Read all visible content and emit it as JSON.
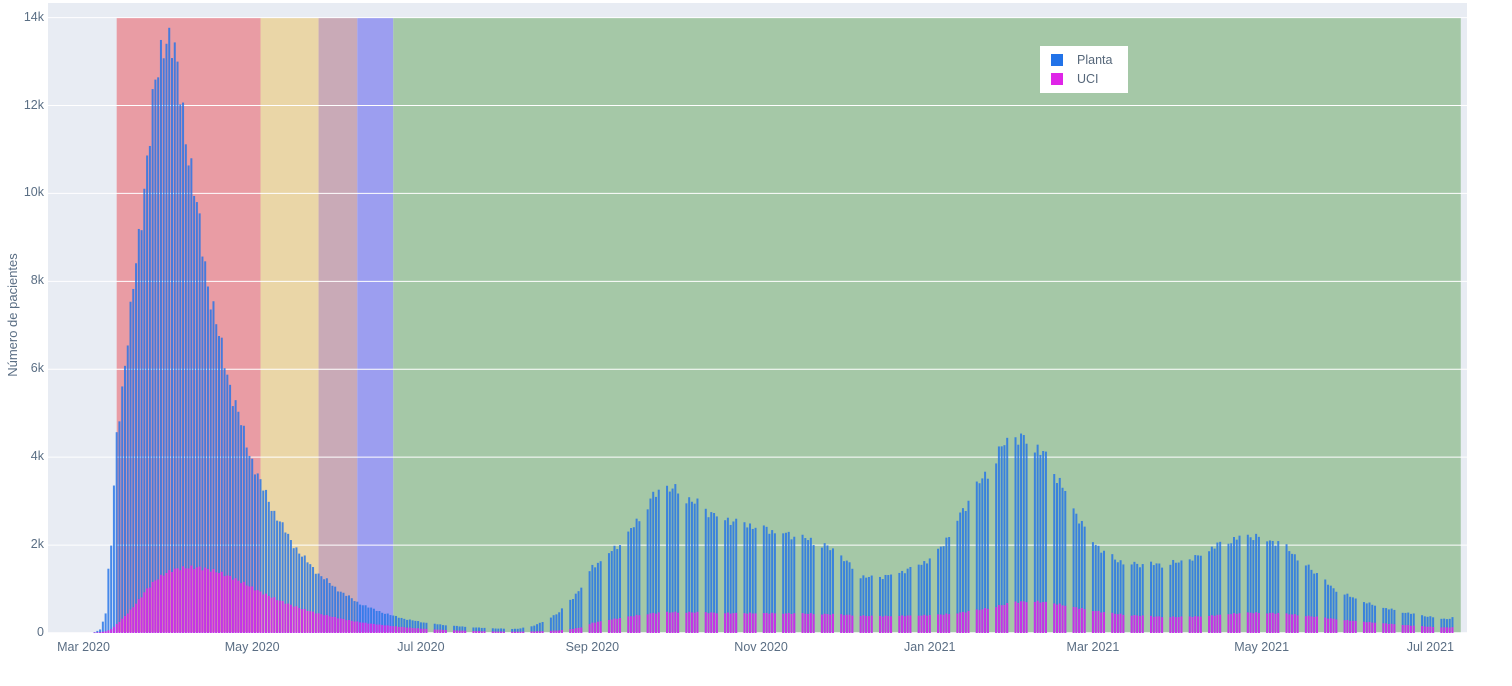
{
  "figure": {
    "background": "#ffffff",
    "plot_background": "#e8ecf3",
    "gridline_color": "#ffffff",
    "tick_text_color": "#5a6e84"
  },
  "legend": {
    "position": "top-right",
    "background": "#ffffff"
  },
  "chart_data": {
    "type": "bar",
    "barmode": "overlay",
    "title": "",
    "xlabel": "",
    "ylabel": "Número de pacientes",
    "ylim": [
      0,
      14000
    ],
    "grid": true,
    "y_ticks": [
      {
        "label": "0",
        "value": 0
      },
      {
        "label": "2k",
        "value": 2000
      },
      {
        "label": "4k",
        "value": 4000
      },
      {
        "label": "6k",
        "value": 6000
      },
      {
        "label": "8k",
        "value": 8000
      },
      {
        "label": "10k",
        "value": 10000
      },
      {
        "label": "12k",
        "value": 12000
      },
      {
        "label": "14k",
        "value": 14000
      }
    ],
    "x_ticks": [
      {
        "label": "Mar 2020",
        "day": 0
      },
      {
        "label": "May 2020",
        "day": 61
      },
      {
        "label": "Jul 2020",
        "day": 122
      },
      {
        "label": "Sep 2020",
        "day": 184
      },
      {
        "label": "Nov 2020",
        "day": 245
      },
      {
        "label": "Jan 2021",
        "day": 306
      },
      {
        "label": "Mar 2021",
        "day": 365
      },
      {
        "label": "May 2021",
        "day": 426
      },
      {
        "label": "Jul 2021",
        "day": 487
      }
    ],
    "day_zero_date": "2020-03-01",
    "data_start": {
      "day": 4,
      "date": "2020-03-05"
    },
    "data_end": {
      "day": 495,
      "date": "2021-07-09"
    },
    "bars_are_daily": true,
    "weekend_gaps_from": {
      "day": 122,
      "date": "2020-07-01"
    },
    "background_phases": [
      {
        "color": "#e99ca4",
        "start_day": 12,
        "end_day": 64,
        "start_date": "2020-03-13",
        "end_date": "2020-05-04"
      },
      {
        "color": "#ead6a7",
        "start_day": 64,
        "end_day": 85,
        "start_date": "2020-05-04",
        "end_date": "2020-05-25"
      },
      {
        "color": "#c9aab7",
        "start_day": 85,
        "end_day": 99,
        "start_date": "2020-05-25",
        "end_date": "2020-06-08"
      },
      {
        "color": "#9c9ef0",
        "start_day": 99,
        "end_day": 112,
        "start_date": "2020-06-08",
        "end_date": "2020-06-21"
      },
      {
        "color": "#a5c8a7",
        "start_day": 112,
        "end_day": 498,
        "start_date": "2020-06-21",
        "end_date": "2021-07-12"
      }
    ],
    "series": [
      {
        "name": "Planta",
        "color": "#2273e8",
        "bar_opacity": 0.82,
        "peak": {
          "value": 13700,
          "date": "2020-03-31"
        }
      },
      {
        "name": "UCI",
        "color": "#df25e8",
        "bar_opacity": 0.85,
        "peak": {
          "value": 1490,
          "date": "2020-04-08"
        }
      }
    ],
    "anchors_format": "[day, planta_value, uci_value] — daily bars linearly interpolated between anchors",
    "anchors": [
      [
        4,
        20,
        10
      ],
      [
        6,
        80,
        20
      ],
      [
        8,
        450,
        40
      ],
      [
        9,
        1400,
        60
      ],
      [
        10,
        2000,
        90
      ],
      [
        11,
        3300,
        140
      ],
      [
        12,
        4500,
        200
      ],
      [
        14,
        5600,
        320
      ],
      [
        17,
        7200,
        520
      ],
      [
        20,
        9000,
        750
      ],
      [
        23,
        10800,
        1000
      ],
      [
        26,
        12400,
        1200
      ],
      [
        29,
        13600,
        1330
      ],
      [
        30,
        13700,
        1370
      ],
      [
        32,
        13350,
        1430
      ],
      [
        35,
        12300,
        1470
      ],
      [
        38,
        11000,
        1490
      ],
      [
        41,
        9600,
        1490
      ],
      [
        45,
        8000,
        1450
      ],
      [
        49,
        6700,
        1380
      ],
      [
        54,
        5400,
        1250
      ],
      [
        59,
        4300,
        1100
      ],
      [
        64,
        3400,
        930
      ],
      [
        69,
        2750,
        790
      ],
      [
        74,
        2200,
        660
      ],
      [
        79,
        1750,
        550
      ],
      [
        85,
        1350,
        440
      ],
      [
        90,
        1080,
        370
      ],
      [
        95,
        860,
        300
      ],
      [
        99,
        700,
        255
      ],
      [
        104,
        560,
        210
      ],
      [
        109,
        450,
        175
      ],
      [
        112,
        390,
        155
      ],
      [
        117,
        310,
        125
      ],
      [
        122,
        250,
        100
      ],
      [
        129,
        190,
        75
      ],
      [
        136,
        150,
        55
      ],
      [
        143,
        120,
        42
      ],
      [
        150,
        100,
        33
      ],
      [
        157,
        95,
        30
      ],
      [
        162,
        150,
        35
      ],
      [
        167,
        280,
        45
      ],
      [
        172,
        480,
        60
      ],
      [
        177,
        800,
        95
      ],
      [
        181,
        1150,
        140
      ],
      [
        184,
        1500,
        230
      ],
      [
        190,
        1800,
        300
      ],
      [
        196,
        2150,
        360
      ],
      [
        202,
        2700,
        420
      ],
      [
        206,
        3100,
        450
      ],
      [
        211,
        3300,
        470
      ],
      [
        216,
        3200,
        475
      ],
      [
        221,
        2950,
        470
      ],
      [
        228,
        2700,
        460
      ],
      [
        235,
        2550,
        450
      ],
      [
        242,
        2450,
        450
      ],
      [
        249,
        2330,
        450
      ],
      [
        256,
        2220,
        445
      ],
      [
        263,
        2100,
        440
      ],
      [
        268,
        1980,
        430
      ],
      [
        273,
        1800,
        420
      ],
      [
        277,
        1550,
        410
      ],
      [
        281,
        1300,
        395
      ],
      [
        285,
        1250,
        385
      ],
      [
        290,
        1300,
        385
      ],
      [
        295,
        1380,
        390
      ],
      [
        300,
        1500,
        395
      ],
      [
        305,
        1650,
        405
      ],
      [
        309,
        1850,
        415
      ],
      [
        314,
        2350,
        440
      ],
      [
        319,
        2900,
        480
      ],
      [
        324,
        3400,
        530
      ],
      [
        329,
        3850,
        590
      ],
      [
        333,
        4300,
        650
      ],
      [
        337,
        4400,
        700
      ],
      [
        341,
        4380,
        720
      ],
      [
        345,
        4200,
        715
      ],
      [
        349,
        3900,
        690
      ],
      [
        353,
        3450,
        650
      ],
      [
        357,
        2950,
        600
      ],
      [
        361,
        2500,
        555
      ],
      [
        365,
        2100,
        510
      ],
      [
        369,
        1850,
        470
      ],
      [
        373,
        1680,
        440
      ],
      [
        378,
        1580,
        410
      ],
      [
        384,
        1550,
        385
      ],
      [
        390,
        1560,
        370
      ],
      [
        396,
        1600,
        365
      ],
      [
        402,
        1700,
        375
      ],
      [
        407,
        1900,
        390
      ],
      [
        412,
        2050,
        420
      ],
      [
        417,
        2150,
        445
      ],
      [
        421,
        2220,
        460
      ],
      [
        426,
        2180,
        460
      ],
      [
        431,
        2080,
        450
      ],
      [
        436,
        1900,
        430
      ],
      [
        441,
        1600,
        400
      ],
      [
        446,
        1350,
        365
      ],
      [
        451,
        1050,
        330
      ],
      [
        456,
        880,
        295
      ],
      [
        461,
        750,
        265
      ],
      [
        466,
        640,
        240
      ],
      [
        471,
        560,
        215
      ],
      [
        476,
        490,
        190
      ],
      [
        481,
        430,
        165
      ],
      [
        486,
        380,
        145
      ],
      [
        490,
        340,
        132
      ],
      [
        493,
        320,
        126
      ],
      [
        495,
        350,
        128
      ]
    ]
  }
}
